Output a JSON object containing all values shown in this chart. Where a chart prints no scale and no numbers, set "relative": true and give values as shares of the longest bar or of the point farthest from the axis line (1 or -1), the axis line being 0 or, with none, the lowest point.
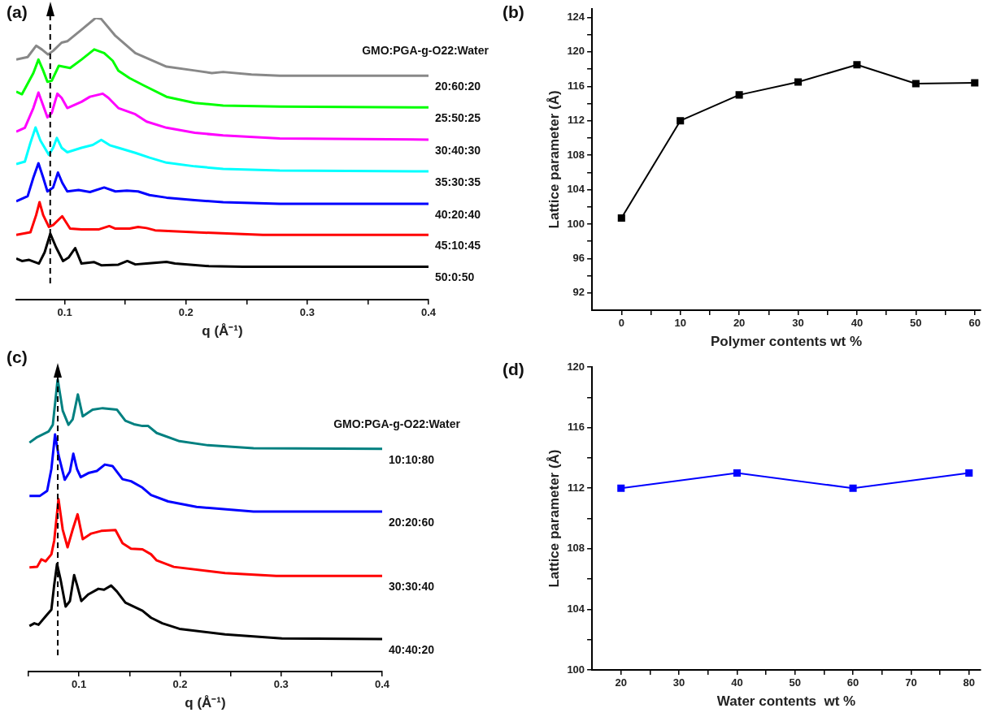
{
  "chart_data": [
    {
      "type": "line",
      "title": "(a)",
      "xlabel": "q (Å⁻¹)",
      "legend_title": "GMO:PGA-g-O22:Water",
      "relative": true,
      "marker": "none",
      "xlim": [
        0.06,
        0.4
      ],
      "xticks": [
        0.1,
        {
          "value": 0.15,
          "label": null
        },
        0.2,
        {
          "value": 0.25,
          "label": null
        },
        0.3,
        {
          "value": 0.35,
          "label": null
        },
        0.4
      ],
      "ref_lines": [
        {
          "axis": "x",
          "value": 0.088,
          "color": "#000000",
          "line_style": "dashed"
        }
      ],
      "series": [
        {
          "name": "20:60:20",
          "color": "#888888",
          "x": [
            0.06,
            0.0694,
            0.0764,
            0.0811,
            0.0862,
            0.0904,
            0.0974,
            0.1021,
            0.1138,
            0.1255,
            0.1301,
            0.1418,
            0.1582,
            0.1839,
            0.2072,
            0.2213,
            0.2306,
            0.254,
            0.2773,
            0.4
          ],
          "values": [
            0.852,
            0.861,
            0.901,
            0.888,
            0.87,
            0.883,
            0.912,
            0.917,
            0.958,
            1,
            0.996,
            0.936,
            0.875,
            0.827,
            0.813,
            0.804,
            0.808,
            0.799,
            0.795,
            0.795
          ]
        },
        {
          "name": "25:50:25",
          "color": "#00ff00",
          "x": [
            0.06,
            0.0647,
            0.0741,
            0.0783,
            0.0822,
            0.0857,
            0.0893,
            0.0951,
            0.1044,
            0.1138,
            0.1243,
            0.1325,
            0.1395,
            0.1442,
            0.1535,
            0.1652,
            0.1839,
            0.2072,
            0.2306,
            0.2773,
            0.4
          ],
          "values": [
            0.738,
            0.729,
            0.804,
            0.852,
            0.813,
            0.773,
            0.777,
            0.83,
            0.822,
            0.852,
            0.888,
            0.875,
            0.848,
            0.813,
            0.786,
            0.76,
            0.72,
            0.698,
            0.689,
            0.685,
            0.682
          ]
        },
        {
          "name": "30:40:30",
          "color": "#ff00ff",
          "x": [
            0.06,
            0.0671,
            0.0741,
            0.0783,
            0.0822,
            0.0857,
            0.0893,
            0.0939,
            0.0974,
            0.1021,
            0.1138,
            0.1208,
            0.1313,
            0.136,
            0.1442,
            0.1582,
            0.1675,
            0.1839,
            0.2072,
            0.2306,
            0.2773,
            0.4
          ],
          "values": [
            0.596,
            0.61,
            0.68,
            0.735,
            0.689,
            0.647,
            0.663,
            0.731,
            0.716,
            0.68,
            0.702,
            0.72,
            0.731,
            0.716,
            0.68,
            0.658,
            0.632,
            0.61,
            0.592,
            0.583,
            0.572,
            0.568
          ]
        },
        {
          "name": "35:30:35",
          "color": "#00ffff",
          "x": [
            0.06,
            0.0671,
            0.0717,
            0.0759,
            0.0799,
            0.0869,
            0.0904,
            0.0935,
            0.0974,
            0.1021,
            0.1138,
            0.1231,
            0.1301,
            0.1371,
            0.1442,
            0.1582,
            0.1699,
            0.1839,
            0.2072,
            0.2306,
            0.2773,
            0.4
          ],
          "values": [
            0.481,
            0.49,
            0.557,
            0.611,
            0.565,
            0.514,
            0.539,
            0.574,
            0.539,
            0.523,
            0.539,
            0.549,
            0.567,
            0.548,
            0.539,
            0.521,
            0.504,
            0.486,
            0.473,
            0.464,
            0.458,
            0.455
          ]
        },
        {
          "name": "40:20:40",
          "color": "#0000ff",
          "x": [
            0.06,
            0.0694,
            0.0741,
            0.0783,
            0.0822,
            0.0857,
            0.0904,
            0.0944,
            0.0979,
            0.1021,
            0.1114,
            0.1208,
            0.1325,
            0.1418,
            0.1512,
            0.1605,
            0.1699,
            0.1839,
            0.2072,
            0.2306,
            0.2773,
            0.4
          ],
          "values": [
            0.349,
            0.367,
            0.433,
            0.484,
            0.433,
            0.384,
            0.398,
            0.451,
            0.415,
            0.384,
            0.389,
            0.382,
            0.398,
            0.384,
            0.387,
            0.384,
            0.371,
            0.362,
            0.353,
            0.346,
            0.34,
            0.34
          ]
        },
        {
          "name": "45:10:45",
          "color": "#ff0000",
          "x": [
            0.06,
            0.0717,
            0.0764,
            0.0792,
            0.0822,
            0.0869,
            0.0904,
            0.0979,
            0.1044,
            0.1138,
            0.1278,
            0.1367,
            0.1418,
            0.1535,
            0.1605,
            0.1675,
            0.1745,
            0.2072,
            0.2633,
            0.4
          ],
          "values": [
            0.23,
            0.239,
            0.3,
            0.346,
            0.3,
            0.258,
            0.265,
            0.296,
            0.252,
            0.249,
            0.249,
            0.261,
            0.252,
            0.252,
            0.258,
            0.254,
            0.246,
            0.239,
            0.23,
            0.23
          ]
        },
        {
          "name": "50:0:50",
          "color": "#000000",
          "x": [
            0.06,
            0.0647,
            0.0706,
            0.0787,
            0.0834,
            0.0881,
            0.0928,
            0.0986,
            0.1033,
            0.1086,
            0.1138,
            0.1243,
            0.1301,
            0.1442,
            0.1516,
            0.1582,
            0.1675,
            0.1839,
            0.1909,
            0.2189,
            0.247,
            0.4
          ],
          "values": [
            0.146,
            0.137,
            0.141,
            0.128,
            0.168,
            0.234,
            0.186,
            0.137,
            0.15,
            0.183,
            0.128,
            0.133,
            0.122,
            0.124,
            0.137,
            0.125,
            0.128,
            0.134,
            0.128,
            0.119,
            0.117,
            0.117
          ]
        }
      ]
    },
    {
      "type": "line",
      "title": "(b)",
      "xlabel": "Polymer contents wt %",
      "ylabel": "Lattice parameter (Å)",
      "marker": "square",
      "xlim": [
        -5,
        61
      ],
      "ylim": [
        90,
        125
      ],
      "xticks": [
        0,
        {
          "value": 5,
          "label": null
        },
        10,
        {
          "value": 15,
          "label": null
        },
        20,
        {
          "value": 25,
          "label": null
        },
        30,
        {
          "value": 35,
          "label": null
        },
        40,
        {
          "value": 45,
          "label": null
        },
        50,
        {
          "value": 55,
          "label": null
        },
        60
      ],
      "yticks": [
        92,
        {
          "value": 94,
          "label": null
        },
        96,
        {
          "value": 98,
          "label": null
        },
        100,
        {
          "value": 102,
          "label": null
        },
        104,
        {
          "value": 106,
          "label": null
        },
        108,
        {
          "value": 110,
          "label": null
        },
        112,
        {
          "value": 114,
          "label": null
        },
        116,
        {
          "value": 118,
          "label": null
        },
        120,
        {
          "value": 122,
          "label": null
        },
        124
      ],
      "x": [
        0,
        10,
        20,
        30,
        40,
        50,
        60
      ],
      "series": [
        {
          "color": "#000000",
          "values": [
            100.7,
            112,
            115,
            116.5,
            118.5,
            116.3,
            116.4
          ]
        }
      ]
    },
    {
      "type": "line",
      "title": "(c)",
      "xlabel": "q (Å⁻¹)",
      "legend_title": "GMO:PGA-g-O22:Water",
      "relative": true,
      "marker": "none",
      "xlim": [
        0.05,
        0.4
      ],
      "xticks": [
        {
          "value": 0.05,
          "label": null
        },
        0.1,
        {
          "value": 0.15,
          "label": null
        },
        0.2,
        {
          "value": 0.25,
          "label": null
        },
        0.3,
        {
          "value": 0.35,
          "label": null
        },
        0.4
      ],
      "ref_lines": [
        {
          "axis": "x",
          "value": 0.079,
          "color": "#000000",
          "line_style": "dashed"
        }
      ],
      "series": [
        {
          "name": "10:10:80",
          "color": "#008080",
          "x": [
            0.051,
            0.0586,
            0.0699,
            0.0741,
            0.0789,
            0.0839,
            0.0896,
            0.0938,
            0.0989,
            0.1037,
            0.1135,
            0.1234,
            0.1375,
            0.1459,
            0.1544,
            0.1628,
            0.1685,
            0.1769,
            0.1994,
            0.2276,
            0.2727,
            0.4
          ],
          "values": [
            0.783,
            0.802,
            0.821,
            0.844,
            1,
            0.892,
            0.844,
            0.863,
            0.948,
            0.873,
            0.896,
            0.901,
            0.896,
            0.858,
            0.846,
            0.84,
            0.84,
            0.816,
            0.788,
            0.774,
            0.764,
            0.762
          ]
        },
        {
          "name": "20:20:60",
          "color": "#0000ff",
          "x": [
            0.051,
            0.0614,
            0.0685,
            0.0727,
            0.0763,
            0.0797,
            0.0859,
            0.091,
            0.0944,
            0.098,
            0.1017,
            0.1093,
            0.1177,
            0.1256,
            0.1332,
            0.1431,
            0.1515,
            0.1628,
            0.1713,
            0.1882,
            0.2163,
            0.2727,
            0.4
          ],
          "values": [
            0.601,
            0.601,
            0.618,
            0.693,
            0.811,
            0.741,
            0.656,
            0.684,
            0.745,
            0.693,
            0.665,
            0.679,
            0.686,
            0.708,
            0.703,
            0.658,
            0.651,
            0.629,
            0.604,
            0.582,
            0.563,
            0.547,
            0.547
          ]
        },
        {
          "name": "30:30:40",
          "color": "#ff0000",
          "x": [
            0.051,
            0.0586,
            0.0628,
            0.067,
            0.0727,
            0.0755,
            0.0797,
            0.0839,
            0.0887,
            0.0938,
            0.0986,
            0.1037,
            0.1121,
            0.122,
            0.1361,
            0.1431,
            0.1515,
            0.1628,
            0.1713,
            0.1769,
            0.1938,
            0.2445,
            0.2952,
            0.4
          ],
          "values": [
            0.356,
            0.358,
            0.384,
            0.377,
            0.401,
            0.448,
            0.59,
            0.486,
            0.425,
            0.486,
            0.538,
            0.453,
            0.472,
            0.481,
            0.484,
            0.439,
            0.42,
            0.418,
            0.401,
            0.38,
            0.358,
            0.337,
            0.327,
            0.327
          ]
        },
        {
          "name": "40:40:20",
          "color": "#000000",
          "x": [
            0.051,
            0.0558,
            0.06,
            0.067,
            0.0727,
            0.0755,
            0.0783,
            0.0817,
            0.0868,
            0.091,
            0.0952,
            0.098,
            0.1023,
            0.1093,
            0.1192,
            0.1248,
            0.1318,
            0.1375,
            0.1459,
            0.1628,
            0.1713,
            0.1825,
            0.1994,
            0.2445,
            0.3008,
            0.4
          ],
          "values": [
            0.156,
            0.165,
            0.16,
            0.189,
            0.212,
            0.297,
            0.368,
            0.316,
            0.222,
            0.241,
            0.33,
            0.297,
            0.241,
            0.264,
            0.283,
            0.28,
            0.294,
            0.274,
            0.236,
            0.208,
            0.184,
            0.165,
            0.146,
            0.127,
            0.113,
            0.111
          ]
        }
      ]
    },
    {
      "type": "line",
      "title": "(d)",
      "xlabel": "Water contents  wt %",
      "ylabel": "Lattice parameter (Å)",
      "marker": "square",
      "xlim": [
        15,
        82
      ],
      "ylim": [
        100,
        120
      ],
      "xticks": [
        20,
        {
          "value": 25,
          "label": null
        },
        30,
        {
          "value": 35,
          "label": null
        },
        40,
        {
          "value": 45,
          "label": null
        },
        50,
        {
          "value": 55,
          "label": null
        },
        60,
        {
          "value": 65,
          "label": null
        },
        70,
        {
          "value": 75,
          "label": null
        },
        80
      ],
      "yticks": [
        100,
        {
          "value": 102,
          "label": null
        },
        104,
        {
          "value": 106,
          "label": null
        },
        108,
        {
          "value": 110,
          "label": null
        },
        112,
        {
          "value": 114,
          "label": null
        },
        116,
        {
          "value": 118,
          "label": null
        },
        120
      ],
      "x": [
        20,
        40,
        60,
        80
      ],
      "series": [
        {
          "color": "#0000ff",
          "values": [
            112,
            113,
            112,
            113
          ]
        }
      ]
    }
  ]
}
